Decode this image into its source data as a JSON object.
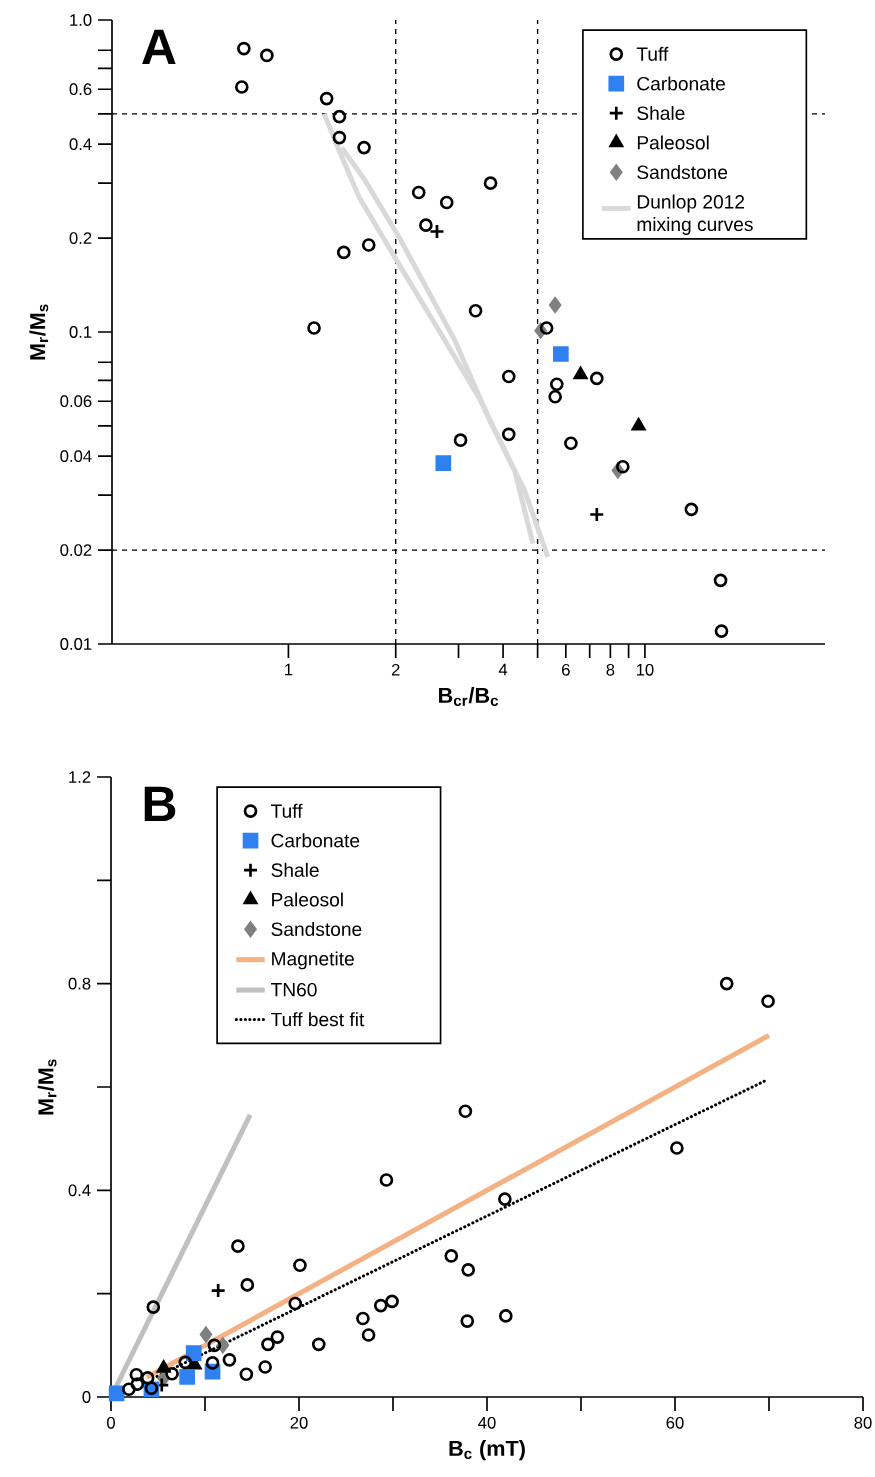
{
  "chart_data": [
    {
      "type": "scatter",
      "title": "A",
      "xlabel": "B$_{cr}$/B$_{c}$",
      "ylabel": "M$_{r}$/M$_{s}$",
      "log": "xy",
      "legend": "top right",
      "xlim": [
        0.32,
        32
      ],
      "ylim": [
        0.01,
        1
      ],
      "xticks": [
        1,
        2,
        {
          "value": 3,
          "label": null
        },
        4,
        {
          "value": 5,
          "label": null
        },
        6,
        {
          "value": 7,
          "label": null
        },
        8,
        {
          "value": 9,
          "label": null
        },
        10
      ],
      "yticks": [
        0.01,
        0.02,
        {
          "value": 0.03,
          "label": null
        },
        0.04,
        {
          "value": 0.05,
          "label": null
        },
        0.06,
        {
          "value": 0.07,
          "label": null
        },
        {
          "value": 0.08,
          "label": null
        },
        0.1,
        0.2,
        {
          "value": 0.3,
          "label": null
        },
        0.4,
        {
          "value": 0.5,
          "label": null
        },
        0.6,
        {
          "value": 0.7,
          "label": null
        },
        {
          "value": 0.8,
          "label": null
        },
        {
          "value": 1,
          "label": "1.0"
        }
      ],
      "ref_lines": [
        {
          "axis": "x",
          "value": 2,
          "color": "#000000",
          "line_style": "dashed"
        },
        {
          "axis": "x",
          "value": 5,
          "color": "#000000",
          "line_style": "dashed"
        },
        {
          "axis": "y",
          "value": 0.5,
          "color": "#000000",
          "line_style": "dashed"
        },
        {
          "axis": "y",
          "value": 0.02,
          "color": "#000000",
          "line_style": "dashed"
        }
      ],
      "series": [
        {
          "name": "Tuff",
          "color": "#000000",
          "marker": "circle",
          "x": [
            0.75,
            0.87,
            0.74,
            1.28,
            1.39,
            1.39,
            1.63,
            2.32,
            2.78,
            3.69,
            2.43,
            1.43,
            1.68,
            1.18,
            3.35,
            5.3,
            4.15,
            5.66,
            5.6,
            7.33,
            3.04,
            4.15,
            6.2,
            8.67,
            13.5,
            16.3,
            16.4
          ],
          "values": [
            0.81,
            0.77,
            0.61,
            0.56,
            0.49,
            0.42,
            0.39,
            0.28,
            0.26,
            0.3,
            0.22,
            0.18,
            0.19,
            0.103,
            0.117,
            0.103,
            0.072,
            0.068,
            0.062,
            0.071,
            0.045,
            0.047,
            0.044,
            0.037,
            0.027,
            0.016,
            0.011
          ]
        },
        {
          "name": "Carbonate",
          "color": "#2f80f0",
          "marker": "square",
          "x": [
            2.72,
            5.81
          ],
          "values": [
            0.038,
            0.085
          ]
        },
        {
          "name": "Shale",
          "color": "#000000",
          "marker": "cross",
          "x": [
            2.61,
            7.33
          ],
          "values": [
            0.21,
            0.026
          ]
        },
        {
          "name": "Paleosol",
          "color": "#000000",
          "marker": "triangle",
          "x": [
            6.6,
            9.6
          ],
          "values": [
            0.073,
            0.05
          ]
        },
        {
          "name": "Sandstone",
          "color": "#808080",
          "marker": "diamond",
          "x": [
            5.6,
            5.1,
            8.4
          ],
          "values": [
            0.122,
            0.101,
            0.036
          ]
        },
        {
          "name": "Dunlop 2012 mixing curves",
          "type": "line",
          "color": "#d9d9d9",
          "marker": "none",
          "line_style": "solid",
          "x": [
            1.26,
            1.39,
            1.58,
            2.01,
            2.66,
            3.44,
            4.31,
            4.85
          ],
          "values": [
            0.5,
            0.38,
            0.27,
            0.17,
            0.1,
            0.061,
            0.036,
            0.021
          ]
        },
        {
          "type": "line",
          "color": "#d9d9d9",
          "marker": "none",
          "line_style": "solid",
          "x": [
            1.41,
            1.63,
            2.05,
            2.93,
            3.67,
            4.6,
            5.34
          ],
          "values": [
            0.39,
            0.31,
            0.2,
            0.094,
            0.052,
            0.031,
            0.019
          ]
        }
      ]
    },
    {
      "type": "scatter",
      "title": "B",
      "xlabel": "B$_{c}$ (mT)",
      "ylabel": "M$_{r}$/M$_{s}$",
      "legend": "top left",
      "xlim": [
        0,
        80
      ],
      "ylim": [
        0,
        1.2
      ],
      "xticks": [
        0,
        {
          "value": 10,
          "label": null
        },
        20,
        {
          "value": 30,
          "label": null
        },
        40,
        {
          "value": 50,
          "label": null
        },
        60,
        {
          "value": 70,
          "label": null
        },
        80
      ],
      "yticks": [
        0,
        {
          "value": 0.2,
          "label": null
        },
        0.4,
        {
          "value": 0.6,
          "label": null
        },
        0.8,
        {
          "value": 1.0,
          "label": null
        },
        1.2
      ],
      "series": [
        {
          "name": "Tuff",
          "color": "#000000",
          "marker": "circle",
          "x": [
            37.7,
            29.3,
            13.5,
            20.1,
            14.5,
            4.5,
            19.6,
            36.2,
            38.0,
            26.8,
            28.7,
            29.9,
            27.4,
            37.9,
            42.0,
            22.1,
            17.7,
            16.7,
            16.4,
            14.4,
            12.6,
            11.0,
            10.8,
            7.9,
            6.5,
            2.7,
            3.9,
            2.8,
            1.9,
            4.3,
            65.5,
            69.9,
            60.2,
            41.9
          ],
          "values": [
            0.553,
            0.42,
            0.292,
            0.255,
            0.217,
            0.174,
            0.181,
            0.273,
            0.246,
            0.152,
            0.177,
            0.185,
            0.12,
            0.147,
            0.157,
            0.102,
            0.116,
            0.102,
            0.058,
            0.044,
            0.072,
            0.1,
            0.066,
            0.067,
            0.045,
            0.043,
            0.037,
            0.025,
            0.015,
            0.017,
            0.8,
            0.766,
            0.482,
            0.383
          ]
        },
        {
          "name": "Carbonate",
          "color": "#2f80f0",
          "marker": "square",
          "x": [
            0.6,
            8.8,
            8.1,
            10.8,
            4.3
          ],
          "values": [
            0.007,
            0.085,
            0.039,
            0.049,
            0.015
          ]
        },
        {
          "name": "Shale",
          "color": "#000000",
          "marker": "cross",
          "x": [
            11.4,
            5.4
          ],
          "values": [
            0.206,
            0.023
          ]
        },
        {
          "name": "Paleosol",
          "color": "#000000",
          "marker": "triangle",
          "x": [
            8.9,
            5.6
          ],
          "values": [
            0.062,
            0.056
          ]
        },
        {
          "name": "Sandstone",
          "color": "#808080",
          "marker": "diamond",
          "x": [
            10.1,
            11.9,
            5.6
          ],
          "values": [
            0.121,
            0.1,
            0.036
          ]
        },
        {
          "name": "Magnetite",
          "type": "line",
          "color": "#f4b183",
          "marker": "none",
          "line_style": "solid",
          "x": [
            3.8,
            70
          ],
          "values": [
            0.038,
            0.7
          ]
        },
        {
          "name": "TN60",
          "type": "line",
          "color": "#c0c0c0",
          "marker": "none",
          "line_style": "solid",
          "x": [
            0,
            14.8
          ],
          "values": [
            0,
            0.546
          ]
        },
        {
          "name": "Tuff best fit",
          "type": "line",
          "color": "#000000",
          "marker": "none",
          "line_style": "dotted",
          "x": [
            4.9,
            69.7
          ],
          "values": [
            0.04,
            0.613
          ]
        }
      ]
    }
  ]
}
